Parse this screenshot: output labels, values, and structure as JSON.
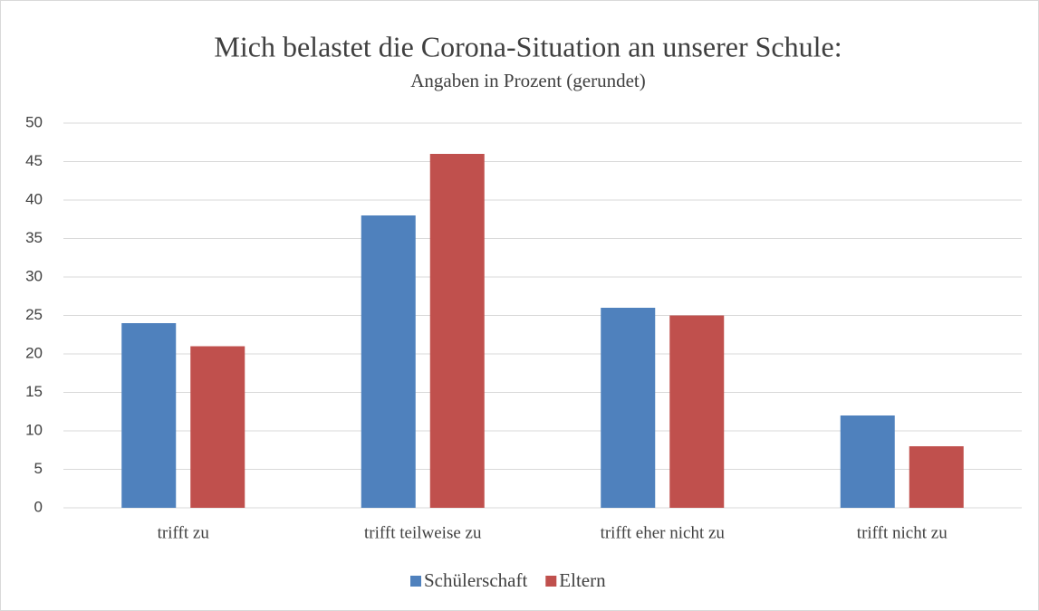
{
  "chart_data": {
    "type": "bar",
    "title": "Mich belastet die Corona-Situation an unserer Schule:",
    "subtitle": "Angaben in Prozent (gerundet)",
    "categories": [
      "trifft zu",
      "trifft teilweise zu",
      "trifft eher nicht zu",
      "trifft nicht zu"
    ],
    "series": [
      {
        "name": "Schülerschaft",
        "color": "#4f81bd",
        "values": [
          24,
          38,
          26,
          12
        ]
      },
      {
        "name": "Eltern",
        "color": "#c0504d",
        "values": [
          21,
          46,
          25,
          8
        ]
      }
    ],
    "ylim": [
      0,
      50
    ],
    "yticks": [
      0,
      5,
      10,
      15,
      20,
      25,
      30,
      35,
      40,
      45,
      50
    ],
    "grid": true,
    "legend": "bottom"
  }
}
